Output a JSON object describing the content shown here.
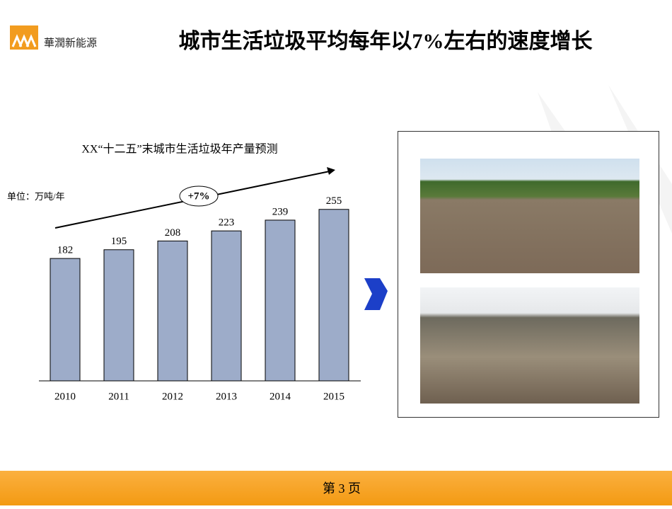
{
  "logo_text": "華潤新能源",
  "page_title": "城市生活垃圾平均每年以7%左右的速度增长",
  "footer": "第 3 页",
  "chart_data": {
    "type": "bar",
    "title": "XX“十二五”末城市生活垃圾年产量预测",
    "unit_label": "单位：万吨/年",
    "annotation": "+7%",
    "categories": [
      "2010",
      "2011",
      "2012",
      "2013",
      "2014",
      "2015"
    ],
    "values": [
      182,
      195,
      208,
      223,
      239,
      255
    ],
    "color": "#9dacc9",
    "ylim": [
      0,
      300
    ]
  }
}
